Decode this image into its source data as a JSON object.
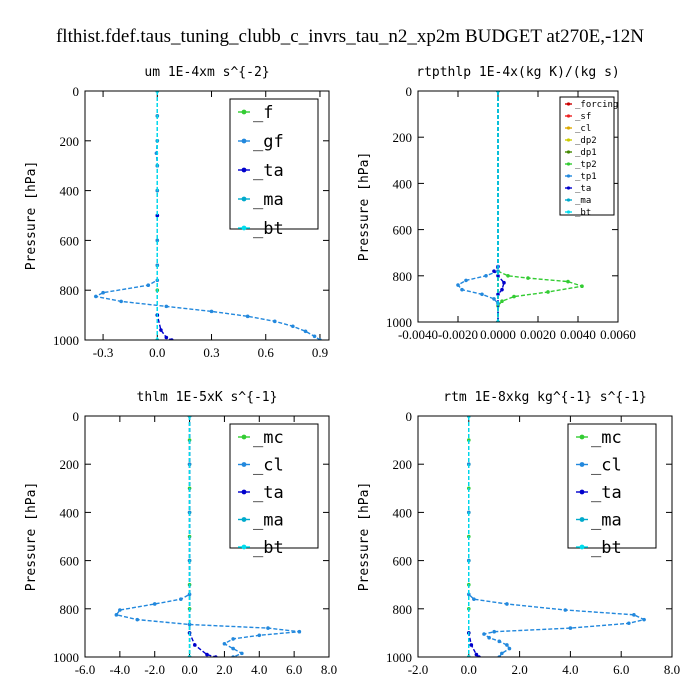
{
  "figure": {
    "title": "flthist.fdef.taus_tuning_clubb_c_invrs_tau_n2_xp2m  BUDGET at270E,-12N"
  },
  "chart_data": [
    {
      "type": "line",
      "title": "um  1E-4xm s^{-2}",
      "ylabel": "Pressure [hPa]",
      "xlim": [
        -0.4,
        0.95
      ],
      "ylim": [
        1000,
        0
      ],
      "xticks": [
        -0.3,
        0.0,
        0.3,
        0.6,
        0.9
      ],
      "xtick_labels": [
        "-0.3",
        "0.0",
        "0.3",
        "0.6",
        "0.9"
      ],
      "yticks": [
        0,
        200,
        400,
        600,
        800,
        1000
      ],
      "ytick_labels": [
        "0",
        "200",
        "400",
        "600",
        "800",
        "1000"
      ],
      "legend_size": "big",
      "series": [
        {
          "name": "_f",
          "color": "#33cc33",
          "values": [
            [
              0,
              0
            ],
            [
              0,
              100
            ],
            [
              0,
              200
            ],
            [
              0,
              300
            ],
            [
              0,
              400
            ],
            [
              0,
              500
            ],
            [
              0,
              600
            ],
            [
              0,
              700
            ],
            [
              0,
              800
            ],
            [
              0,
              900
            ],
            [
              0,
              1000
            ]
          ]
        },
        {
          "name": "_gf",
          "color": "#2288dd",
          "values": [
            [
              0,
              0
            ],
            [
              0,
              100
            ],
            [
              0,
              200
            ],
            [
              -0.005,
              250
            ],
            [
              0,
              300
            ],
            [
              0,
              400
            ],
            [
              0,
              500
            ],
            [
              0,
              600
            ],
            [
              0,
              700
            ],
            [
              0,
              760
            ],
            [
              -0.05,
              780
            ],
            [
              -0.3,
              810
            ],
            [
              -0.34,
              825
            ],
            [
              -0.2,
              845
            ],
            [
              0.05,
              865
            ],
            [
              0.3,
              885
            ],
            [
              0.5,
              905
            ],
            [
              0.65,
              925
            ],
            [
              0.75,
              945
            ],
            [
              0.82,
              965
            ],
            [
              0.87,
              985
            ],
            [
              0.9,
              1000
            ]
          ]
        },
        {
          "name": "_ta",
          "color": "#0000cc",
          "values": [
            [
              0,
              0
            ],
            [
              0,
              500
            ],
            [
              0,
              900
            ],
            [
              0.02,
              960
            ],
            [
              0.05,
              990
            ],
            [
              0.08,
              1000
            ]
          ]
        },
        {
          "name": "_ma",
          "color": "#00aacc",
          "values": [
            [
              0,
              0
            ],
            [
              0,
              1000
            ]
          ]
        },
        {
          "name": "_bt",
          "color": "#00ddee",
          "values": [
            [
              0,
              0
            ],
            [
              0,
              1000
            ]
          ]
        }
      ]
    },
    {
      "type": "line",
      "title": "rtpthlp  1E-4x(kg K)/(kg s)",
      "ylabel": "Pressure [hPa]",
      "xlim": [
        -0.004,
        0.006
      ],
      "ylim": [
        1000,
        0
      ],
      "xticks": [
        -0.004,
        -0.002,
        0.0,
        0.002,
        0.004,
        0.006
      ],
      "xtick_labels": [
        "-0.0040",
        "-0.0020",
        "0.0000",
        "0.0020",
        "0.0040",
        "0.0060"
      ],
      "yticks": [
        0,
        200,
        400,
        600,
        800,
        1000
      ],
      "ytick_labels": [
        "0",
        "200",
        "400",
        "600",
        "800",
        "1000"
      ],
      "legend_size": "small",
      "series": [
        {
          "name": "_forcing",
          "color": "#cc0000",
          "values": [
            [
              0,
              0
            ],
            [
              0,
              1000
            ]
          ]
        },
        {
          "name": "_sf",
          "color": "#ee2222",
          "values": [
            [
              0,
              0
            ],
            [
              0,
              1000
            ]
          ]
        },
        {
          "name": "_cl",
          "color": "#ddaa00",
          "values": [
            [
              0,
              0
            ],
            [
              0,
              1000
            ]
          ]
        },
        {
          "name": "_dp2",
          "color": "#cccc00",
          "values": [
            [
              0,
              0
            ],
            [
              0,
              1000
            ]
          ]
        },
        {
          "name": "_dp1",
          "color": "#448800",
          "values": [
            [
              0,
              0
            ],
            [
              0,
              1000
            ]
          ]
        },
        {
          "name": "_tp2",
          "color": "#33cc33",
          "values": [
            [
              0,
              0
            ],
            [
              0,
              780
            ],
            [
              0.0005,
              800
            ],
            [
              0.0015,
              810
            ],
            [
              0.0035,
              825
            ],
            [
              0.0042,
              845
            ],
            [
              0.0025,
              870
            ],
            [
              0.0008,
              890
            ],
            [
              0.0002,
              910
            ],
            [
              0,
              930
            ],
            [
              0,
              1000
            ]
          ]
        },
        {
          "name": "_tp1",
          "color": "#2288dd",
          "values": [
            [
              0,
              0
            ],
            [
              0,
              780
            ],
            [
              -0.0006,
              800
            ],
            [
              -0.0016,
              820
            ],
            [
              -0.002,
              840
            ],
            [
              -0.0018,
              860
            ],
            [
              -0.0008,
              880
            ],
            [
              -0.0002,
              900
            ],
            [
              0,
              920
            ],
            [
              0,
              1000
            ]
          ]
        },
        {
          "name": "_ta",
          "color": "#0000cc",
          "values": [
            [
              0,
              0
            ],
            [
              0,
              760
            ],
            [
              -0.0002,
              780
            ],
            [
              0,
              800
            ],
            [
              0.0003,
              830
            ],
            [
              0.0002,
              860
            ],
            [
              0,
              880
            ],
            [
              0,
              1000
            ]
          ]
        },
        {
          "name": "_ma",
          "color": "#00aacc",
          "values": [
            [
              0,
              0
            ],
            [
              0,
              1000
            ]
          ]
        },
        {
          "name": "_bt",
          "color": "#00ddee",
          "values": [
            [
              0,
              0
            ],
            [
              0,
              1000
            ]
          ]
        }
      ]
    },
    {
      "type": "line",
      "title": "thlm  1E-5xK s^{-1}",
      "ylabel": "Pressure [hPa]",
      "xlim": [
        -6.0,
        8.0
      ],
      "ylim": [
        1000,
        0
      ],
      "xticks": [
        -6.0,
        -4.0,
        -2.0,
        0.0,
        2.0,
        4.0,
        6.0,
        8.0
      ],
      "xtick_labels": [
        "-6.0",
        "-4.0",
        "-2.0",
        "0.0",
        "2.0",
        "4.0",
        "6.0",
        "8.0"
      ],
      "yticks": [
        0,
        200,
        400,
        600,
        800,
        1000
      ],
      "ytick_labels": [
        "0",
        "200",
        "400",
        "600",
        "800",
        "1000"
      ],
      "legend_size": "big",
      "series": [
        {
          "name": "_mc",
          "color": "#33cc33",
          "values": [
            [
              0,
              0
            ],
            [
              0,
              100
            ],
            [
              0,
              200
            ],
            [
              0,
              300
            ],
            [
              0,
              400
            ],
            [
              0,
              500
            ],
            [
              0,
              600
            ],
            [
              0,
              700
            ],
            [
              0,
              800
            ],
            [
              0,
              900
            ],
            [
              0,
              1000
            ]
          ]
        },
        {
          "name": "_cl",
          "color": "#2288dd",
          "values": [
            [
              0,
              0
            ],
            [
              0,
              200
            ],
            [
              0,
              400
            ],
            [
              0,
              600
            ],
            [
              0,
              740
            ],
            [
              -0.5,
              760
            ],
            [
              -2.0,
              780
            ],
            [
              -4.0,
              805
            ],
            [
              -4.2,
              825
            ],
            [
              -3.0,
              845
            ],
            [
              0,
              865
            ],
            [
              4.5,
              880
            ],
            [
              6.3,
              895
            ],
            [
              4.0,
              910
            ],
            [
              2.5,
              925
            ],
            [
              2.0,
              945
            ],
            [
              2.5,
              965
            ],
            [
              3.0,
              985
            ],
            [
              2.5,
              1000
            ]
          ]
        },
        {
          "name": "_ta",
          "color": "#0000cc",
          "values": [
            [
              0,
              0
            ],
            [
              0,
              900
            ],
            [
              0.3,
              950
            ],
            [
              1.0,
              990
            ],
            [
              1.5,
              1000
            ]
          ]
        },
        {
          "name": "_ma",
          "color": "#00aacc",
          "values": [
            [
              0,
              0
            ],
            [
              0,
              1000
            ]
          ]
        },
        {
          "name": "_bt",
          "color": "#00ddee",
          "values": [
            [
              0,
              0
            ],
            [
              0,
              1000
            ]
          ]
        }
      ]
    },
    {
      "type": "line",
      "title": "rtm  1E-8xkg kg^{-1} s^{-1}",
      "ylabel": "Pressure [hPa]",
      "xlim": [
        -2.0,
        8.0
      ],
      "ylim": [
        1000,
        0
      ],
      "xticks": [
        -2.0,
        0.0,
        2.0,
        4.0,
        6.0,
        8.0
      ],
      "xtick_labels": [
        "-2.0",
        "0.0",
        "2.0",
        "4.0",
        "6.0",
        "8.0"
      ],
      "yticks": [
        0,
        200,
        400,
        600,
        800,
        1000
      ],
      "ytick_labels": [
        "0",
        "200",
        "400",
        "600",
        "800",
        "1000"
      ],
      "legend_size": "big",
      "series": [
        {
          "name": "_mc",
          "color": "#33cc33",
          "values": [
            [
              0,
              0
            ],
            [
              0,
              100
            ],
            [
              0,
              200
            ],
            [
              0,
              300
            ],
            [
              0,
              400
            ],
            [
              0,
              500
            ],
            [
              0,
              600
            ],
            [
              0,
              700
            ],
            [
              0,
              800
            ],
            [
              0,
              900
            ],
            [
              0,
              1000
            ]
          ]
        },
        {
          "name": "_cl",
          "color": "#2288dd",
          "values": [
            [
              0,
              0
            ],
            [
              0,
              200
            ],
            [
              0,
              400
            ],
            [
              0,
              600
            ],
            [
              0,
              740
            ],
            [
              0.2,
              760
            ],
            [
              1.5,
              780
            ],
            [
              3.8,
              805
            ],
            [
              6.5,
              825
            ],
            [
              6.9,
              845
            ],
            [
              6.3,
              860
            ],
            [
              4.0,
              880
            ],
            [
              1.0,
              895
            ],
            [
              0.6,
              905
            ],
            [
              0.8,
              920
            ],
            [
              1.2,
              935
            ],
            [
              1.5,
              950
            ],
            [
              1.6,
              965
            ],
            [
              1.3,
              985
            ],
            [
              1.2,
              1000
            ]
          ]
        },
        {
          "name": "_ta",
          "color": "#0000cc",
          "values": [
            [
              0,
              0
            ],
            [
              0,
              900
            ],
            [
              0.1,
              950
            ],
            [
              0.3,
              990
            ],
            [
              0.4,
              1000
            ]
          ]
        },
        {
          "name": "_ma",
          "color": "#00aacc",
          "values": [
            [
              0,
              0
            ],
            [
              0,
              1000
            ]
          ]
        },
        {
          "name": "_bt",
          "color": "#00ddee",
          "values": [
            [
              0,
              0
            ],
            [
              0,
              1000
            ]
          ]
        }
      ]
    }
  ]
}
